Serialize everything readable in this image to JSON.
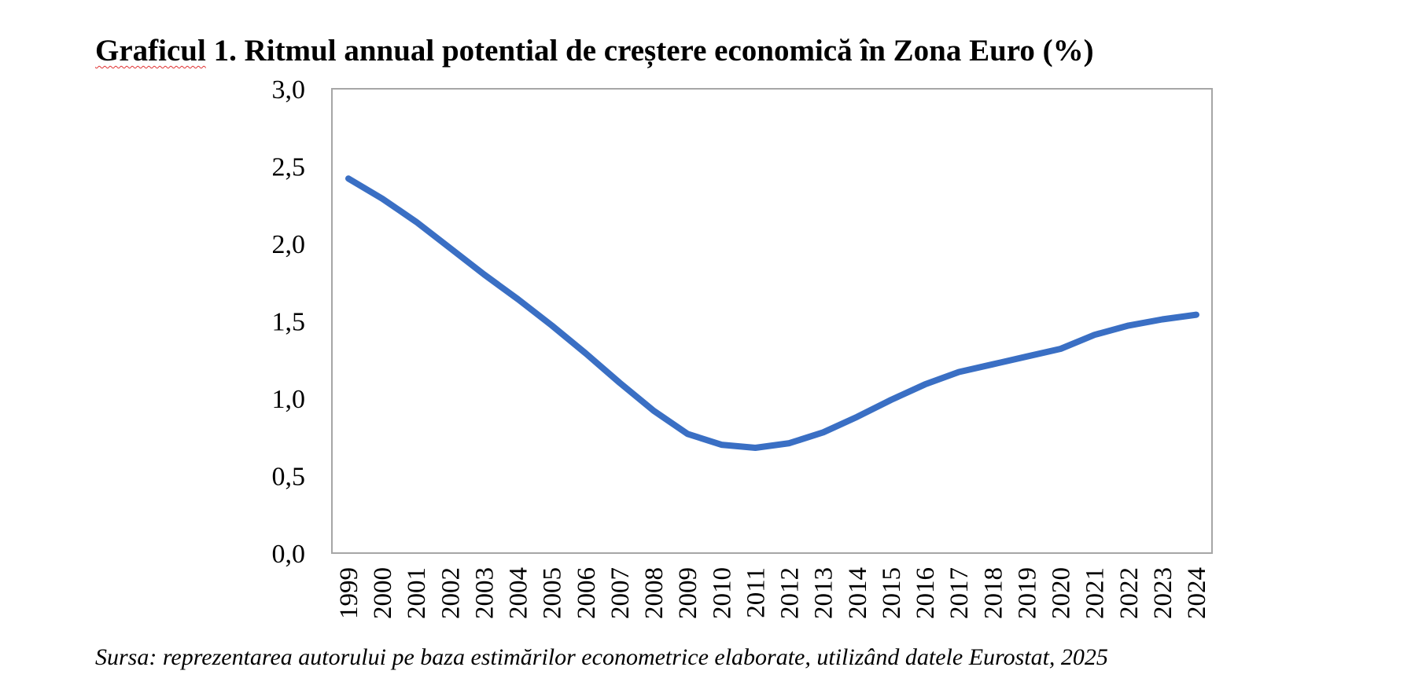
{
  "title": {
    "prefix": "Graficul",
    "rest": " 1. Ritmul annual potential de creștere economică în Zona Euro (%)"
  },
  "source": "Sursa: reprezentarea autorului pe baza estimărilor econometrice elaborate, utilizând datele Eurostat, 2025",
  "colors": {
    "line": "#3A6FC4",
    "frame": "#A6A6A6"
  },
  "chart_data": {
    "type": "line",
    "title": "Graficul 1. Ritmul annual potential de creștere economică în Zona Euro (%)",
    "xlabel": "",
    "ylabel": "",
    "x": [
      "1999",
      "2000",
      "2001",
      "2002",
      "2003",
      "2004",
      "2005",
      "2006",
      "2007",
      "2008",
      "2009",
      "2010",
      "2011",
      "2012",
      "2013",
      "2014",
      "2015",
      "2016",
      "2017",
      "2018",
      "2019",
      "2020",
      "2021",
      "2022",
      "2023",
      "2024"
    ],
    "series": [
      {
        "values": [
          2.42,
          2.29,
          2.14,
          1.97,
          1.8,
          1.64,
          1.47,
          1.29,
          1.1,
          0.92,
          0.77,
          0.7,
          0.68,
          0.71,
          0.78,
          0.88,
          0.99,
          1.09,
          1.17,
          1.22,
          1.27,
          1.32,
          1.41,
          1.47,
          1.51,
          1.54
        ]
      }
    ],
    "ylim": [
      0,
      3
    ],
    "yticks": [
      0,
      0.5,
      1,
      1.5,
      2,
      2.5,
      3
    ],
    "ytick_labels": [
      "0,0",
      "0,5",
      "1,0",
      "1,5",
      "2,0",
      "2,5",
      "3,0"
    ],
    "grid": false,
    "legend": "none"
  }
}
